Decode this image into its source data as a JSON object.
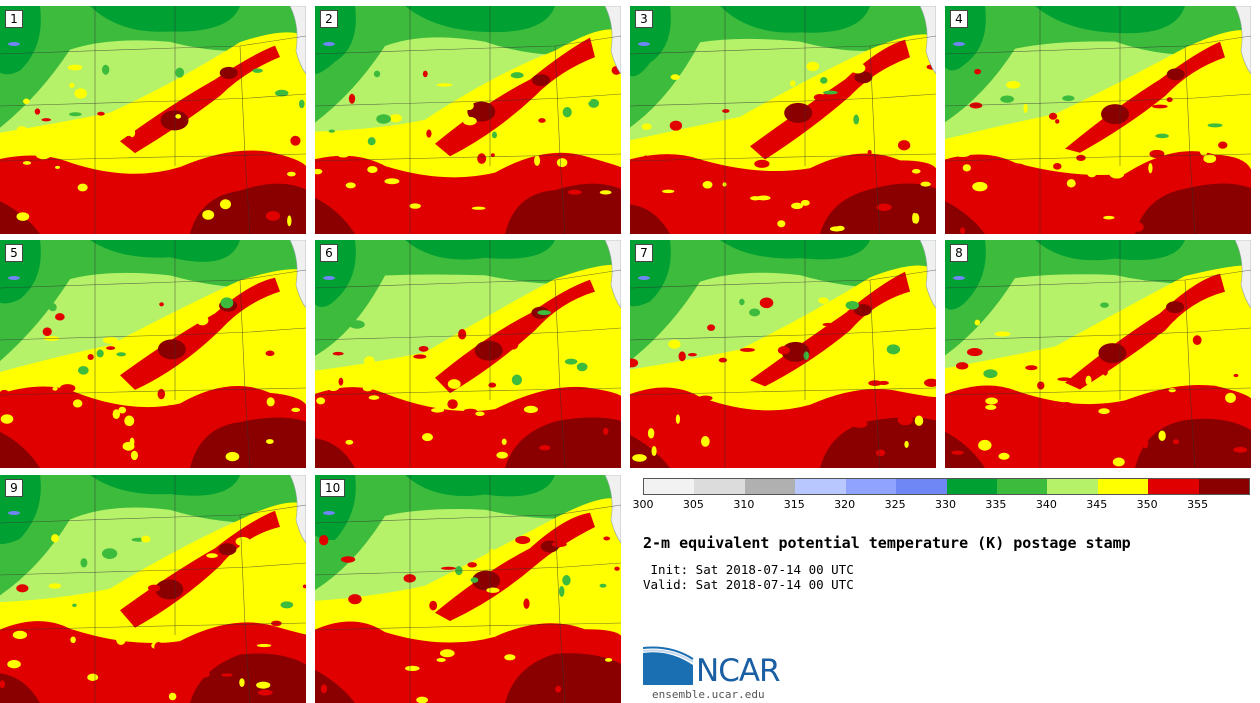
{
  "panels": [
    {
      "label": "1"
    },
    {
      "label": "2"
    },
    {
      "label": "3"
    },
    {
      "label": "4"
    },
    {
      "label": "5"
    },
    {
      "label": "6"
    },
    {
      "label": "7"
    },
    {
      "label": "8"
    },
    {
      "label": "9"
    },
    {
      "label": "10"
    }
  ],
  "colorbar": {
    "colors": [
      "#f2f2f2",
      "#dcdcdc",
      "#b0b0b0",
      "#b8c8ff",
      "#8fa3ff",
      "#6f86f5",
      "#00a032",
      "#3dbb3d",
      "#b5f26a",
      "#ffff00",
      "#e00000",
      "#8a0000"
    ],
    "ticks": [
      "300",
      "305",
      "310",
      "315",
      "320",
      "325",
      "330",
      "335",
      "340",
      "345",
      "350",
      "355"
    ]
  },
  "title": "2-m equivalent potential temperature (K) postage stamp",
  "init_text": " Init: Sat 2018-07-14 00 UTC",
  "valid_text": "Valid: Sat 2018-07-14 00 UTC",
  "logo": {
    "word": "NCAR",
    "url": "ensemble.ucar.edu"
  }
}
